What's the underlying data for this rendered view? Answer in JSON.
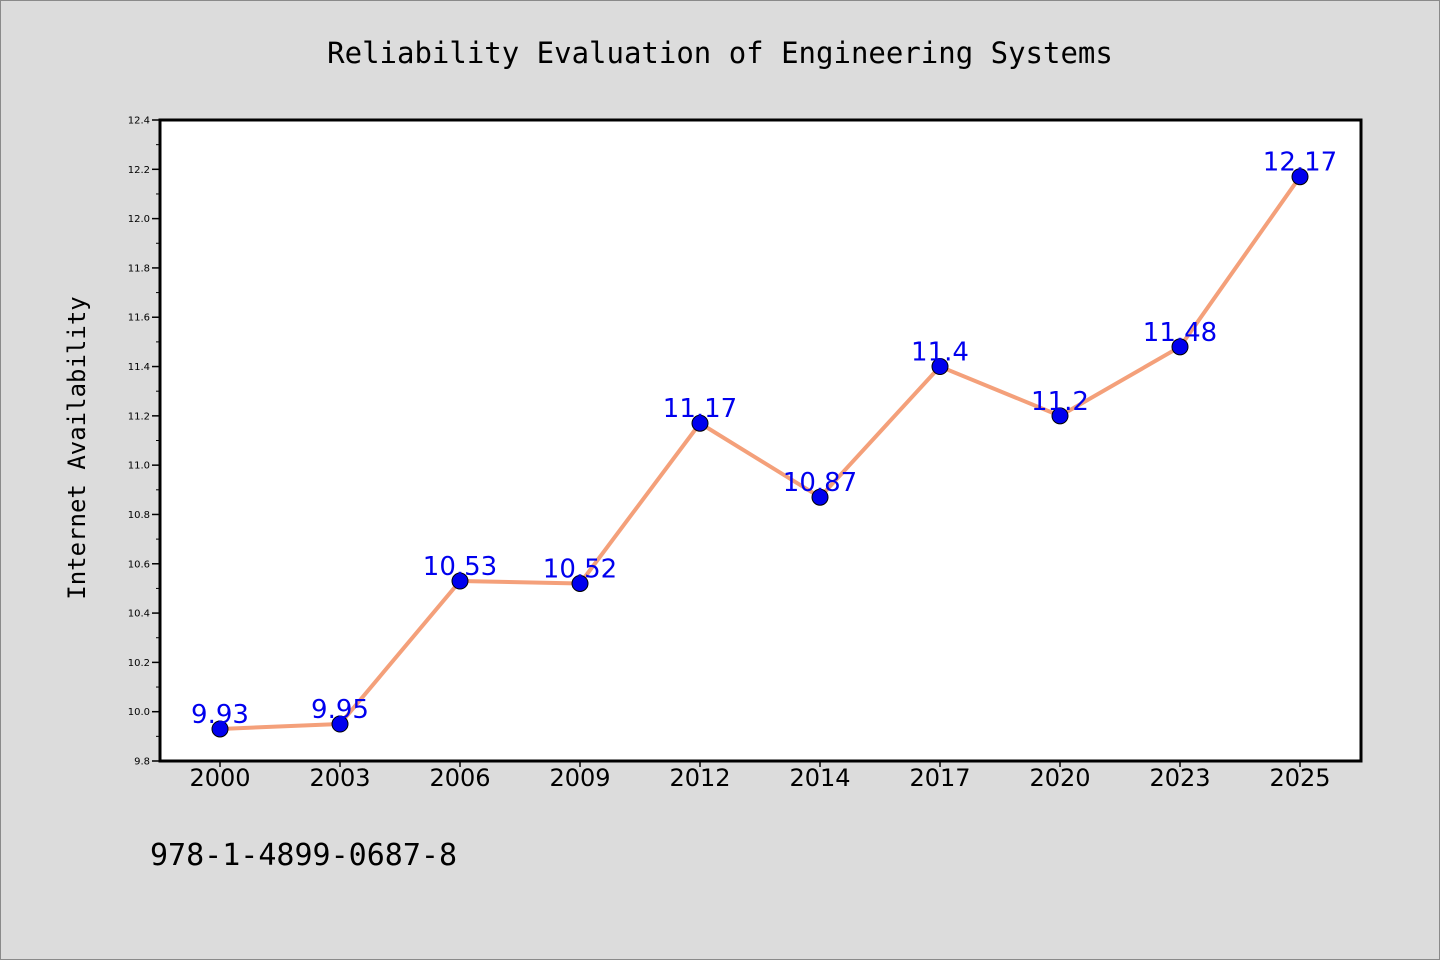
{
  "chart_data": {
    "type": "line",
    "title": "Reliability Evaluation of Engineering Systems",
    "xlabel": "",
    "ylabel": "Internet Availability",
    "categories": [
      "2000",
      "2003",
      "2006",
      "2009",
      "2012",
      "2014",
      "2017",
      "2020",
      "2023",
      "2025"
    ],
    "series": [
      {
        "values": [
          9.93,
          9.95,
          10.53,
          10.52,
          11.17,
          10.87,
          11.4,
          11.2,
          11.48,
          12.17
        ],
        "data_labels": [
          "9.93",
          "9.95",
          "10.53",
          "10.52",
          "11.17",
          "10.87",
          "11.4",
          "11.2",
          "11.48",
          "12.17"
        ],
        "line_color": "#f4a07a",
        "marker_color": "#0000ee"
      }
    ],
    "ylim": [
      9.8,
      12.4
    ],
    "y_ticks": [
      "9.8",
      "10.0",
      "10.2",
      "10.4",
      "10.6",
      "10.8",
      "11.0",
      "11.2",
      "11.4",
      "11.6",
      "11.8",
      "12.0",
      "12.2",
      "12.4"
    ],
    "grid": false,
    "legend": "none",
    "annotation": "978-1-4899-0687-8",
    "colors": {
      "background": "#dcdcdc",
      "plot_background": "#ffffff",
      "label_color": "#0000ee"
    }
  }
}
